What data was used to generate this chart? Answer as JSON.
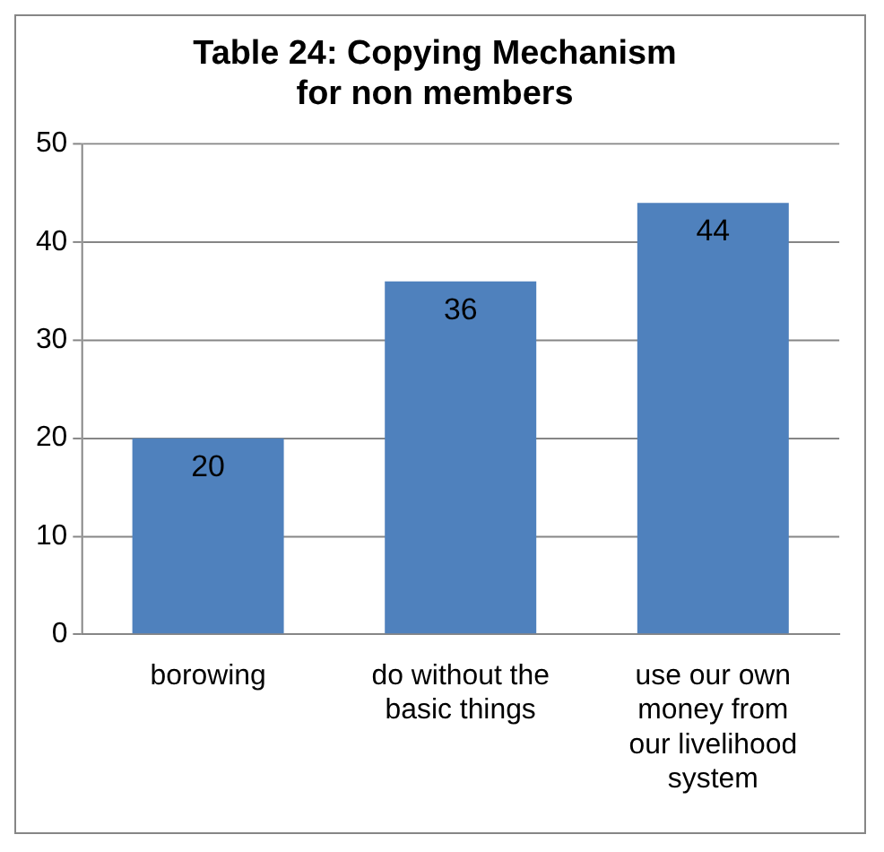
{
  "chart_data": {
    "type": "bar",
    "title": "Table 24: Copying Mechanism for non members",
    "categories": [
      "borowing",
      "do without the basic things",
      "use our own money from our livelihood system"
    ],
    "values": [
      20,
      36,
      44
    ],
    "color": "#4f81bd",
    "ylim": [
      0,
      50
    ],
    "yticks": [
      0,
      10,
      20,
      30,
      40,
      50
    ],
    "grid": "y",
    "data_labels": true,
    "legend": false
  }
}
